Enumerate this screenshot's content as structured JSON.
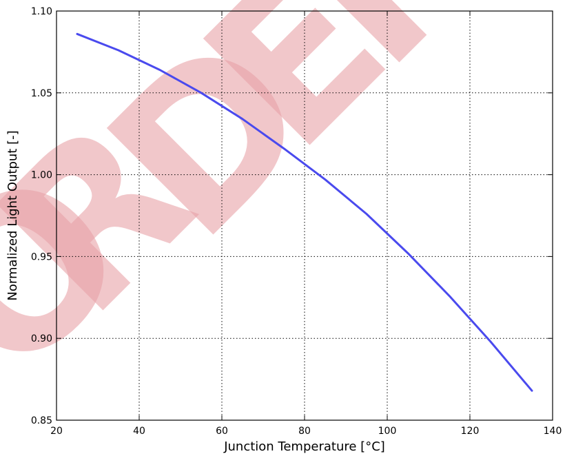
{
  "chart_data": {
    "type": "line",
    "title": "",
    "xlabel": "Junction Temperature [°C]",
    "ylabel": "Normalized Light Output [-]",
    "xlim": [
      20,
      140
    ],
    "ylim": [
      0.85,
      1.1
    ],
    "grid": true,
    "x_ticks": [
      20,
      40,
      60,
      80,
      100,
      120,
      140
    ],
    "y_ticks": [
      0.85,
      0.9,
      0.95,
      1.0,
      1.05,
      1.1
    ],
    "x_tick_labels": [
      "20",
      "40",
      "60",
      "80",
      "100",
      "120",
      "140"
    ],
    "y_tick_labels": [
      "0.85",
      "0.90",
      "0.95",
      "1.00",
      "1.05",
      "1.10"
    ],
    "series": [
      {
        "color": "#4a4aee",
        "x": [
          25,
          35,
          45,
          55,
          65,
          75,
          85,
          95,
          105,
          115,
          125,
          135
        ],
        "y": [
          1.086,
          1.076,
          1.064,
          1.05,
          1.034,
          1.016,
          0.997,
          0.976,
          0.952,
          0.926,
          0.898,
          0.868
        ]
      }
    ]
  },
  "watermark": {
    "text": "ORDER",
    "color": "#e8a2a8"
  }
}
